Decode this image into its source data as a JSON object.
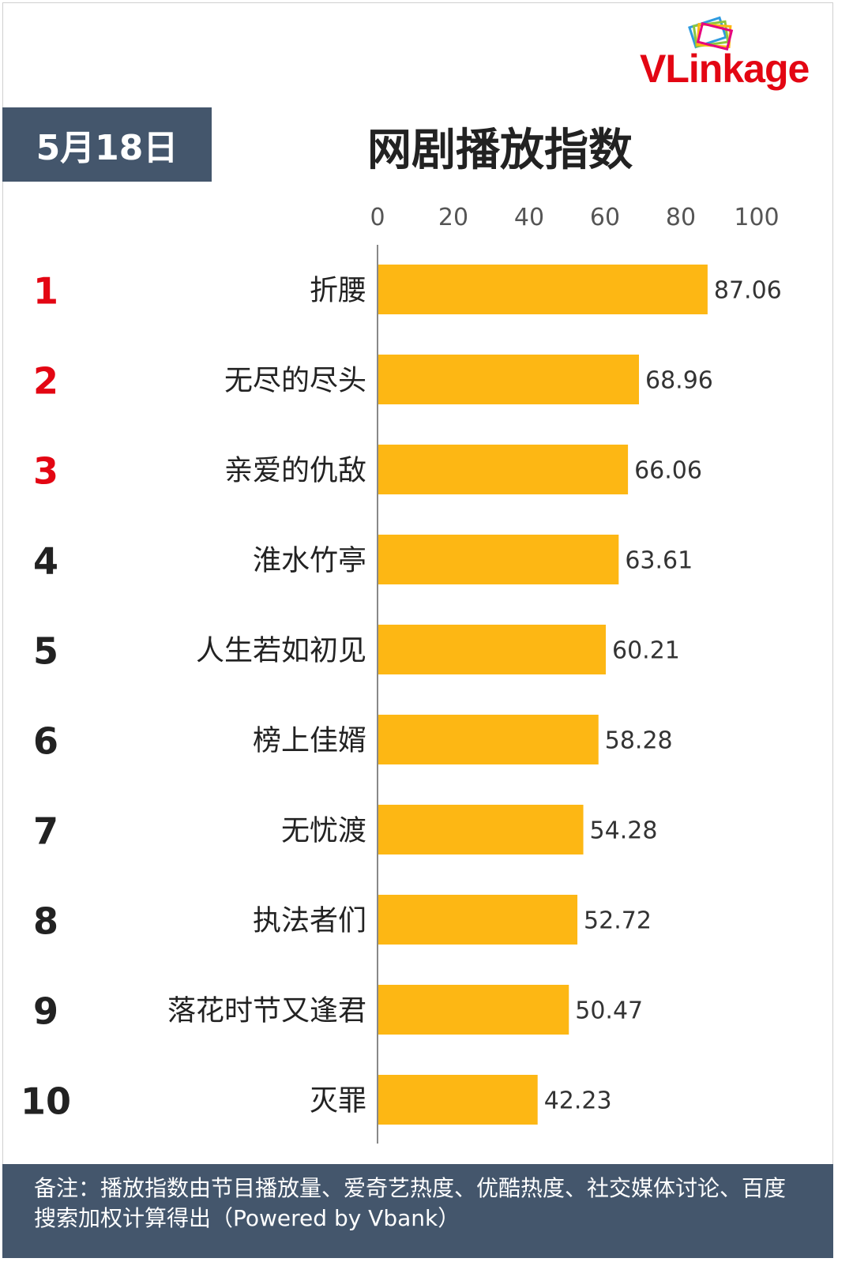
{
  "header": {
    "date": "5月18日",
    "title": "网剧播放指数",
    "logo_prefix": "VL",
    "logo_rest": "inkage"
  },
  "footer": {
    "note": "备注：播放指数由节目播放量、爱奇艺热度、优酷热度、社交媒体讨论、百度搜索加权计算得出（Powered by Vbank）"
  },
  "chart_data": {
    "type": "bar",
    "orientation": "horizontal",
    "xlim": [
      0,
      100
    ],
    "ticks": [
      0,
      20,
      40,
      60,
      80,
      100
    ],
    "bar_color": "#fdb714",
    "rank_colors": {
      "top3": "#e30613",
      "rest": "#222222"
    },
    "ranks": [
      "1",
      "2",
      "3",
      "4",
      "5",
      "6",
      "7",
      "8",
      "9",
      "10"
    ],
    "categories": [
      "折腰",
      "无尽的尽头",
      "亲爱的仇敌",
      "淮水竹亭",
      "人生若如初见",
      "榜上佳婿",
      "无忧渡",
      "执法者们",
      "落花时节又逢君",
      "灭罪"
    ],
    "values": [
      87.06,
      68.96,
      66.06,
      63.61,
      60.21,
      58.28,
      54.28,
      52.72,
      50.47,
      42.23
    ],
    "value_labels": [
      "87.06",
      "68.96",
      "66.06",
      "63.61",
      "60.21",
      "58.28",
      "54.28",
      "52.72",
      "50.47",
      "42.23"
    ]
  }
}
